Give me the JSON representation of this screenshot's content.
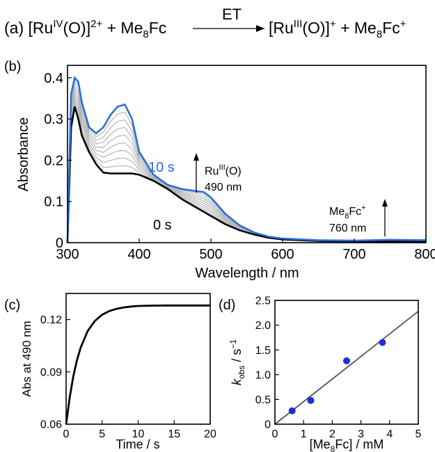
{
  "scheme": {
    "panel": "(a)",
    "left_text": "[Ru",
    "left_sup": "IV",
    "left_rest": "(O)]",
    "left_charge": "2+",
    "plus1": "+ Me",
    "plus1_sub": "8",
    "plus1_end": "Fc",
    "arrow_label": "ET",
    "right_text": "[Ru",
    "right_sup": "III",
    "right_rest": "(O)]",
    "right_charge": "+",
    "plus2": "+ Me",
    "plus2_sub": "8",
    "plus2_end": "Fc",
    "plus2_charge": "+"
  },
  "chart_data": [
    {
      "panel": "(b)",
      "type": "line",
      "xlabel": "Wavelength / nm",
      "ylabel": "Absorbance",
      "xlim": [
        300,
        800
      ],
      "ylim": [
        0,
        0.43
      ],
      "x_ticks": [
        300,
        400,
        500,
        600,
        700,
        800
      ],
      "y_ticks": [
        0,
        0.1,
        0.2,
        0.3,
        0.4
      ],
      "x": [
        300,
        305,
        310,
        315,
        320,
        330,
        340,
        350,
        360,
        370,
        380,
        390,
        400,
        420,
        440,
        460,
        480,
        490,
        500,
        520,
        540,
        560,
        580,
        600,
        650,
        700,
        750,
        800
      ],
      "series": [
        {
          "name": "0 s",
          "color": "#000000",
          "values": [
            0,
            0.28,
            0.33,
            0.3,
            0.26,
            0.22,
            0.19,
            0.17,
            0.168,
            0.168,
            0.168,
            0.168,
            0.165,
            0.15,
            0.13,
            0.105,
            0.085,
            0.075,
            0.065,
            0.045,
            0.03,
            0.02,
            0.012,
            0.008,
            0.004,
            0.003,
            0.003,
            0.003
          ]
        },
        {
          "name": "10 s",
          "color": "#2a6ee0",
          "values": [
            0,
            0.36,
            0.4,
            0.39,
            0.34,
            0.28,
            0.265,
            0.28,
            0.31,
            0.33,
            0.335,
            0.3,
            0.22,
            0.165,
            0.14,
            0.13,
            0.125,
            0.123,
            0.11,
            0.07,
            0.042,
            0.025,
            0.015,
            0.01,
            0.006,
            0.005,
            0.007,
            0.006
          ]
        }
      ],
      "intermediate_count": 8,
      "intermediate_color": "#b5b5b5",
      "annotations": [
        {
          "text": "10 s",
          "color": "#2a6ee0"
        },
        {
          "text": "0 s",
          "color": "#000000"
        },
        {
          "text": "Ru",
          "sup": "III",
          "rest": "(O)",
          "line2": "490 nm"
        },
        {
          "text": "Me",
          "sub": "8",
          "rest": "Fc",
          "sup": "+",
          "line2": "760 nm"
        }
      ]
    },
    {
      "panel": "(c)",
      "type": "line",
      "xlabel": "Time / s",
      "ylabel": "Abs at 490 nm",
      "xlim": [
        0,
        20
      ],
      "ylim": [
        0.06,
        0.135
      ],
      "x_ticks": [
        0,
        5,
        10,
        15,
        20
      ],
      "y_ticks": [
        0.06,
        0.09,
        0.12
      ],
      "x": [
        0,
        0.5,
        1,
        1.5,
        2,
        3,
        4,
        5,
        6,
        7,
        8,
        9,
        10,
        12,
        14,
        16,
        18,
        20
      ],
      "series": [
        {
          "color": "#000000",
          "values": [
            0.06,
            0.0755,
            0.0874,
            0.0966,
            0.1037,
            0.1135,
            0.1193,
            0.1228,
            0.1249,
            0.1262,
            0.127,
            0.1275,
            0.1278,
            0.128,
            0.1281,
            0.1281,
            0.1281,
            0.1281
          ]
        }
      ]
    },
    {
      "panel": "(d)",
      "type": "scatter",
      "xlabel_main": "[Me",
      "xlabel_sub": "8",
      "xlabel_end": "Fc] / mM",
      "ylabel_main": "k",
      "ylabel_sub": "obs",
      "ylabel_end": " / s",
      "ylabel_sup": "−1",
      "xlim": [
        0,
        5
      ],
      "ylim": [
        0,
        2.5
      ],
      "x_ticks": [
        0,
        1,
        2,
        3,
        4,
        5
      ],
      "y_ticks": [
        0,
        0.5,
        1.0,
        1.5,
        2.0,
        2.5
      ],
      "y_tick_labels": [
        "0",
        "0.5",
        "1.0",
        "1.5",
        "2.0",
        "2.5"
      ],
      "points": {
        "x": [
          0.6,
          1.25,
          2.5,
          3.75
        ],
        "y": [
          0.27,
          0.48,
          1.28,
          1.65
        ],
        "color": "#1f2fd6"
      },
      "fit": {
        "x": [
          0,
          5
        ],
        "y": [
          0,
          2.28
        ],
        "color": "#555555"
      }
    }
  ]
}
